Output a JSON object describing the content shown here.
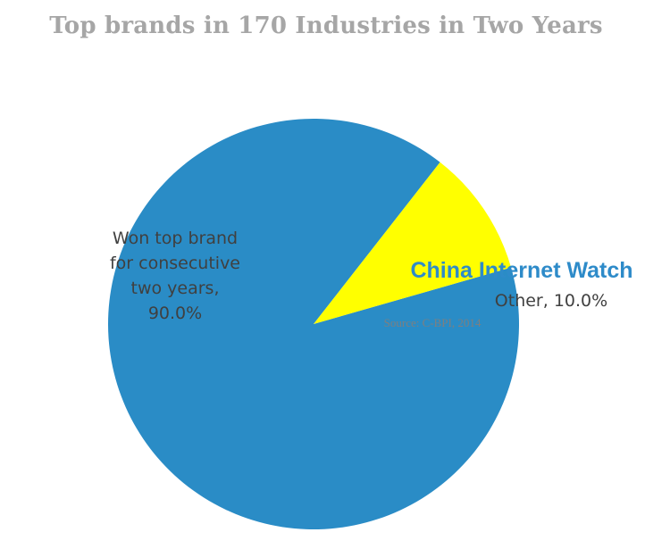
{
  "chart_data": {
    "type": "pie",
    "title": "Top brands in 170 Industries in Two Years",
    "slices": [
      {
        "label_lines": [
          "Won top brand",
          "for consecutive",
          "two years,",
          "90.0%"
        ],
        "value": 90.0,
        "color": "#2a8cc6"
      },
      {
        "label_lines": [
          "Other, 10.0%"
        ],
        "value": 10.0,
        "color": "#ffff00"
      }
    ],
    "legend": "none"
  },
  "watermark": "China Internet Watch",
  "source": "Source: C-BPI, 2014"
}
